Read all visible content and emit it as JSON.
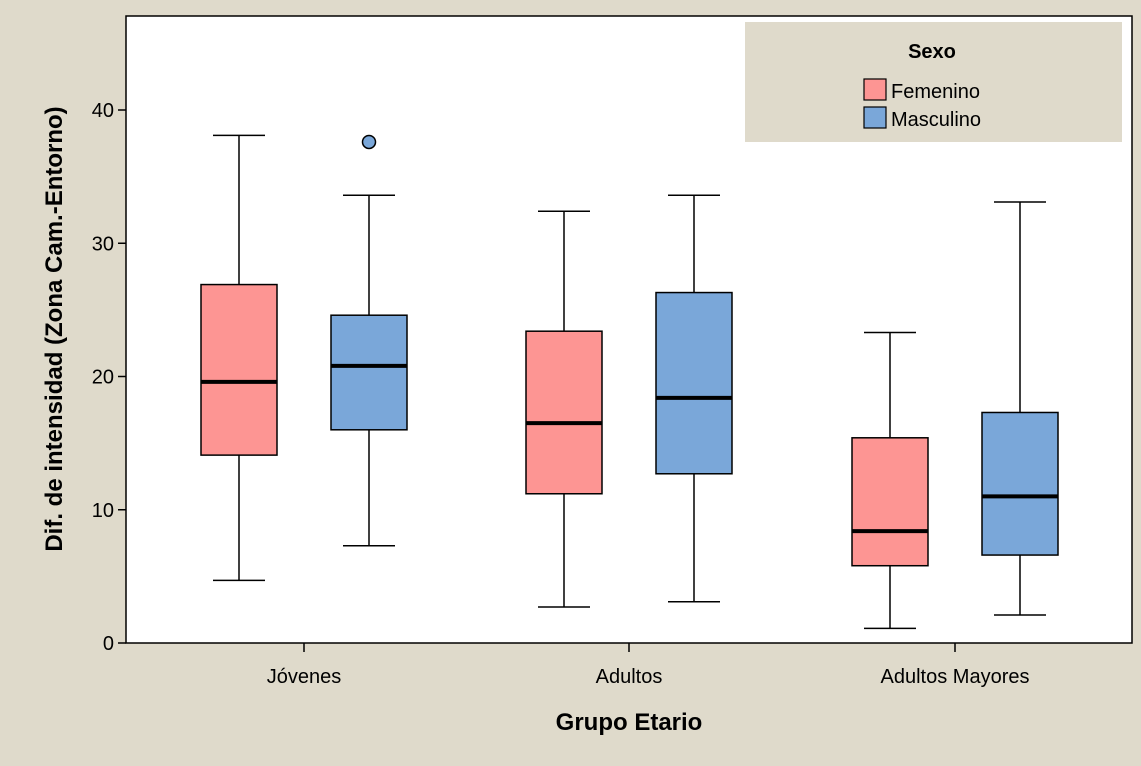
{
  "chart_data": {
    "type": "boxplot",
    "title": "",
    "xlabel": "Grupo Etario",
    "ylabel": "Dif. de intensidad (Zona Cam.-Entorno)",
    "categories": [
      "Jóvenes",
      "Adultos",
      "Adultos Mayores"
    ],
    "ylim": [
      0,
      46
    ],
    "yticks": [
      0,
      10,
      20,
      30,
      40
    ],
    "grid": false,
    "legend": {
      "title": "Sexo",
      "position": "top-right",
      "entries": [
        "Femenino",
        "Masculino"
      ]
    },
    "series": [
      {
        "name": "Femenino",
        "color": "#fd9593",
        "boxes": [
          {
            "min": 4.7,
            "q1": 14.1,
            "median": 19.6,
            "q3": 26.9,
            "max": 38.1,
            "outliers": []
          },
          {
            "min": 2.7,
            "q1": 11.2,
            "median": 16.5,
            "q3": 23.4,
            "max": 32.4,
            "outliers": []
          },
          {
            "min": 1.1,
            "q1": 5.8,
            "median": 8.4,
            "q3": 15.4,
            "max": 23.3,
            "outliers": []
          }
        ]
      },
      {
        "name": "Masculino",
        "color": "#7aa7d9",
        "boxes": [
          {
            "min": 7.3,
            "q1": 16.0,
            "median": 20.8,
            "q3": 24.6,
            "max": 33.6,
            "outliers": [
              37.6
            ]
          },
          {
            "min": 3.1,
            "q1": 12.7,
            "median": 18.4,
            "q3": 26.3,
            "max": 33.6,
            "outliers": []
          },
          {
            "min": 2.1,
            "q1": 6.6,
            "median": 11.0,
            "q3": 17.3,
            "max": 33.1,
            "outliers": []
          }
        ]
      }
    ],
    "colors": {
      "frame_background": "#dfdacb",
      "plot_background": "#ffffff",
      "legend_background": "#dfdacb"
    }
  }
}
